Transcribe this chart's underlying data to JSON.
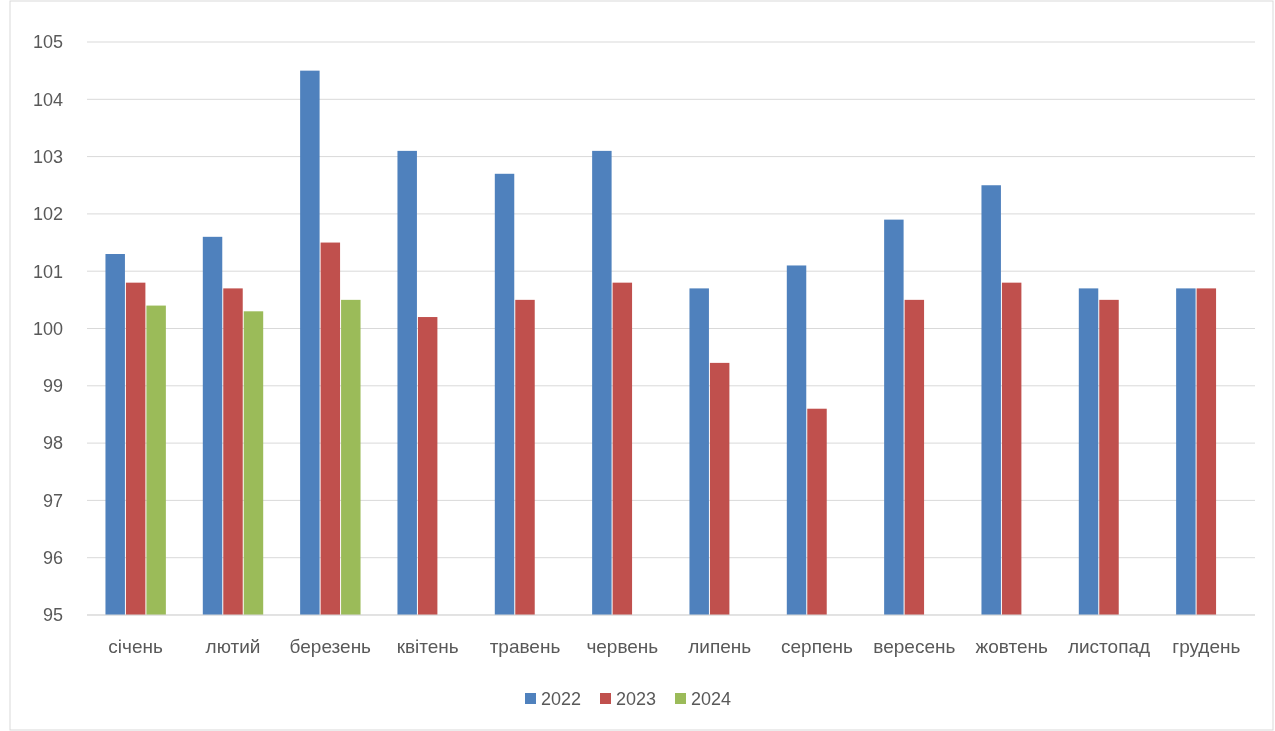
{
  "chart_data": {
    "type": "bar",
    "categories": [
      "січень",
      "лютий",
      "березень",
      "квітень",
      "травень",
      "червень",
      "липень",
      "серпень",
      "вересень",
      "жовтень",
      "листопад",
      "грудень"
    ],
    "series": [
      {
        "name": "2022",
        "color": "#4f81bd",
        "values": [
          101.3,
          101.6,
          104.5,
          103.1,
          102.7,
          103.1,
          100.7,
          101.1,
          101.9,
          102.5,
          100.7,
          100.7
        ]
      },
      {
        "name": "2023",
        "color": "#c0504d",
        "values": [
          100.8,
          100.7,
          101.5,
          100.2,
          100.5,
          100.8,
          99.4,
          98.6,
          100.5,
          100.8,
          100.5,
          100.7
        ]
      },
      {
        "name": "2024",
        "color": "#9bbb59",
        "values": [
          100.4,
          100.3,
          100.5,
          null,
          null,
          null,
          null,
          null,
          null,
          null,
          null,
          null
        ]
      }
    ],
    "ylim": [
      95,
      105
    ],
    "yticks": [
      95,
      96,
      97,
      98,
      99,
      100,
      101,
      102,
      103,
      104,
      105
    ],
    "grid": "y",
    "legend": "bottom"
  }
}
